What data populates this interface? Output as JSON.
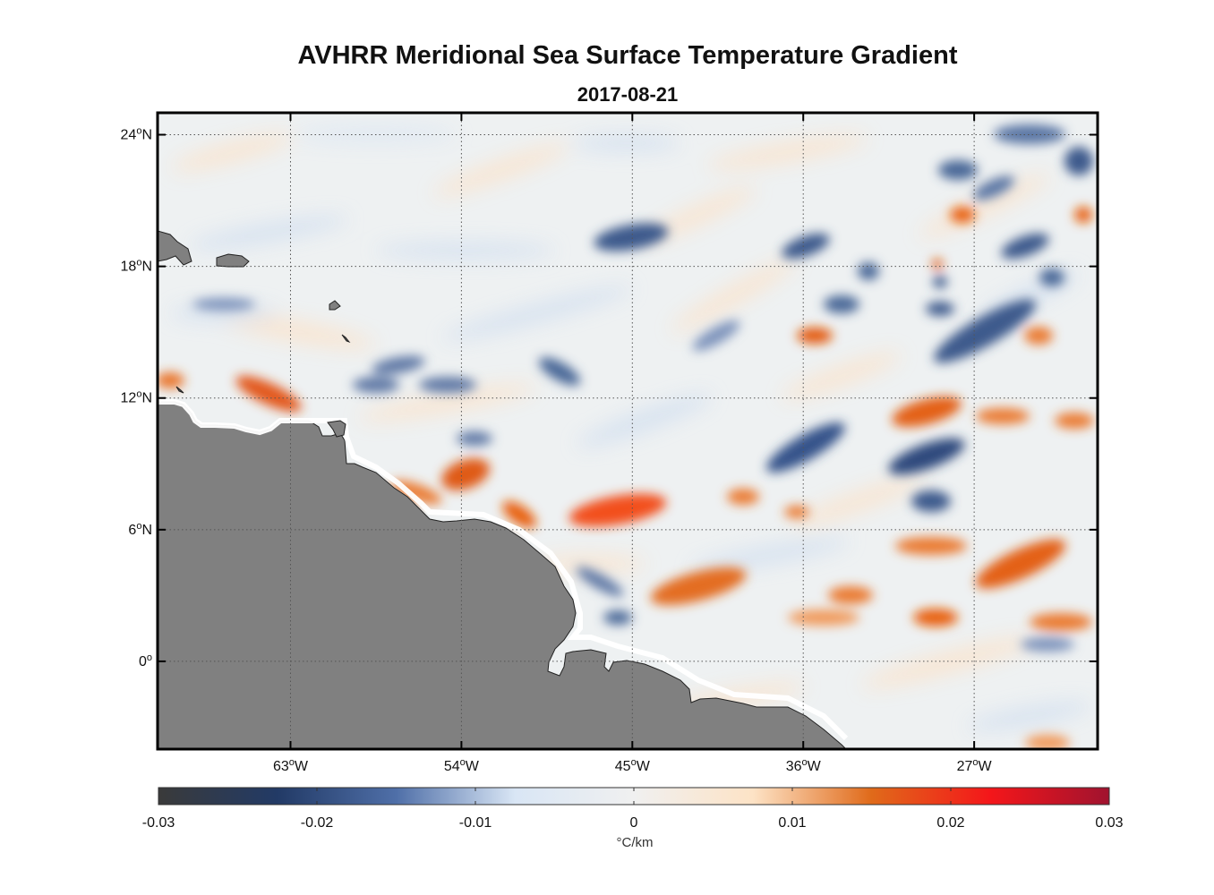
{
  "title": "AVHRR Meridional Sea Surface Temperature Gradient",
  "subtitle": "2017-08-21",
  "map": {
    "lon_range": [
      -70,
      -20.5
    ],
    "lat_range": [
      -4,
      25
    ],
    "lat_ticks": [
      {
        "value": 24,
        "label": "24",
        "suffix": "N"
      },
      {
        "value": 18,
        "label": "18",
        "suffix": "N"
      },
      {
        "value": 12,
        "label": "12",
        "suffix": "N"
      },
      {
        "value": 6,
        "label": "6",
        "suffix": "N"
      },
      {
        "value": 0,
        "label": "0",
        "suffix": ""
      }
    ],
    "lon_ticks": [
      {
        "value": -63,
        "label": "63",
        "suffix": "W"
      },
      {
        "value": -54,
        "label": "54",
        "suffix": "W"
      },
      {
        "value": -45,
        "label": "45",
        "suffix": "W"
      },
      {
        "value": -36,
        "label": "36",
        "suffix": "W"
      },
      {
        "value": -27,
        "label": "27",
        "suffix": "W"
      }
    ],
    "grid": "dotted",
    "land_color": "#808080"
  },
  "colorbar": {
    "min": -0.03,
    "max": 0.03,
    "ticks": [
      "-0.03",
      "-0.02",
      "-0.01",
      "0",
      "0.01",
      "0.02",
      "0.03"
    ],
    "unit": "°C/km",
    "colors": [
      "#3a3a3a",
      "#223a66",
      "#4f6fa8",
      "#d9e6f5",
      "#f0f0f0",
      "#fde3c6",
      "#e06a1a",
      "#f4161a",
      "#a0132f"
    ]
  }
}
